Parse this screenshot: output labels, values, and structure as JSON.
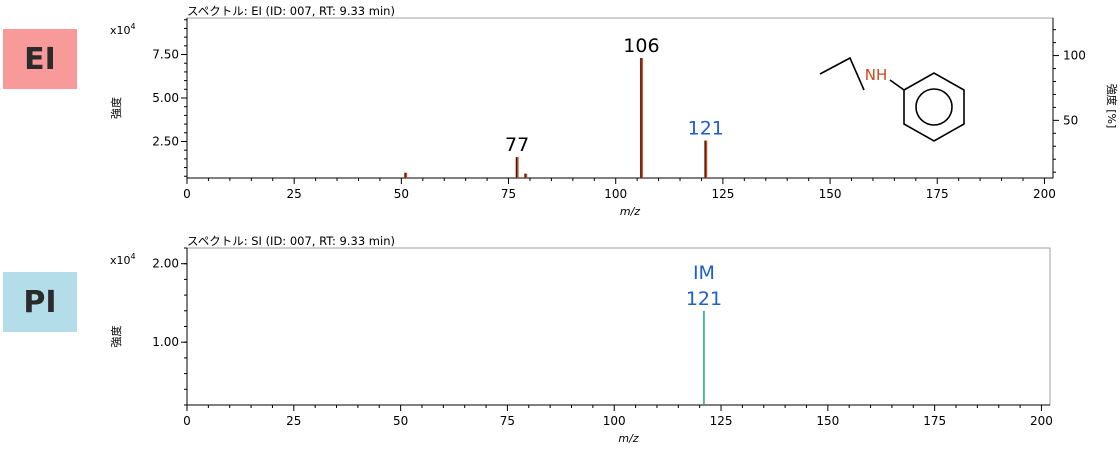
{
  "badges": [
    {
      "label": "EI",
      "color": "#f89a9a"
    },
    {
      "label": "PI",
      "color": "#b3dde8"
    }
  ],
  "structure": {
    "nh_label": "NH",
    "nh_color": "#d0451b"
  },
  "chart_data": [
    {
      "type": "bar",
      "title": "スペクトル: EI (ID: 007, RT: 9.33 min)",
      "xlabel": "m/z",
      "ylabel": "強度",
      "ylabel_right": "強度 [%]",
      "y_scale_label": "x10",
      "y_scale_exp": "4",
      "xlim": [
        0,
        202
      ],
      "ylim": [
        0.4,
        9.6
      ],
      "y_ticks": [
        "2.50",
        "5.00",
        "7.50"
      ],
      "y_tick_values": [
        2.5,
        5.0,
        7.5
      ],
      "right_ylim": [
        5.5,
        129
      ],
      "right_ticks": [
        50,
        100
      ],
      "x_ticks": [
        0,
        25,
        50,
        75,
        100,
        125,
        150,
        175,
        200
      ],
      "bar_color": "#1a1a1a",
      "bar_edge_color": "#d0451b",
      "peaks": [
        {
          "x": 51,
          "y": 0.7
        },
        {
          "x": 77,
          "y": 1.6
        },
        {
          "x": 79,
          "y": 0.65
        },
        {
          "x": 106,
          "y": 7.3
        },
        {
          "x": 121,
          "y": 2.55
        }
      ],
      "annotations": [
        {
          "x": 77,
          "y": 1.6,
          "lines": [
            "77"
          ],
          "color": "#000000"
        },
        {
          "x": 106,
          "y": 7.3,
          "lines": [
            "106"
          ],
          "color": "#000000"
        },
        {
          "x": 121,
          "y": 2.55,
          "lines": [
            "121"
          ],
          "color": "#1e5fc8"
        }
      ]
    },
    {
      "type": "bar",
      "title": "スペクトル: SI (ID: 007, RT: 9.33 min)",
      "xlabel": "m/z",
      "ylabel": "強度",
      "y_scale_label": "x10",
      "y_scale_exp": "4",
      "xlim": [
        0,
        202
      ],
      "ylim": [
        0.2,
        2.2
      ],
      "y_ticks": [
        "1.00",
        "2.00"
      ],
      "y_tick_values": [
        1.0,
        2.0
      ],
      "x_ticks": [
        0,
        25,
        50,
        75,
        100,
        125,
        150,
        175,
        200
      ],
      "bar_color": "#1fa37a",
      "peaks": [
        {
          "x": 121,
          "y": 1.4
        }
      ],
      "annotations": [
        {
          "x": 121,
          "y": 1.4,
          "lines": [
            "IM",
            "121"
          ],
          "color": "#1e5fc8"
        }
      ]
    }
  ]
}
